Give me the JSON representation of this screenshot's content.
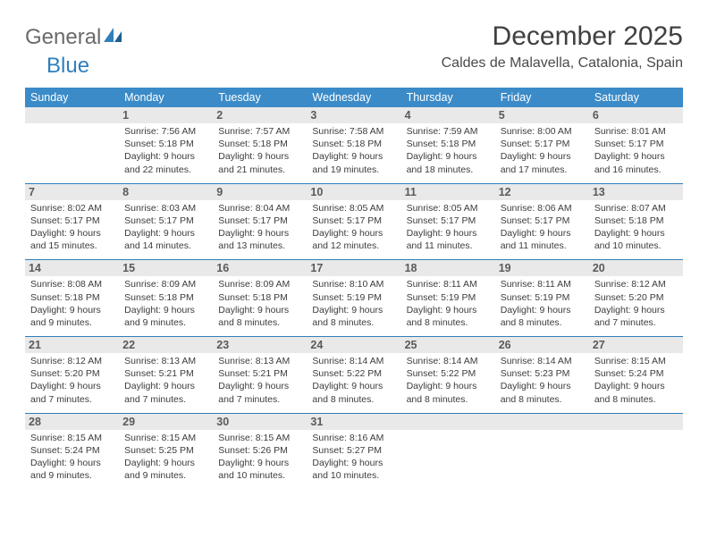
{
  "logo": {
    "general": "General",
    "blue": "Blue"
  },
  "title": "December 2025",
  "location": "Caldes de Malavella, Catalonia, Spain",
  "colors": {
    "header_bg": "#3b8bc8",
    "header_text": "#ffffff",
    "daynum_bg": "#e9e9e9",
    "rule": "#2f7fbc",
    "logo_gray": "#6a6a6a",
    "logo_blue": "#2f7fbc"
  },
  "typography": {
    "title_fontsize": 30,
    "location_fontsize": 16,
    "dayheader_fontsize": 12.5,
    "daynum_fontsize": 12.5,
    "body_fontsize": 10.5
  },
  "dayHeaders": [
    "Sunday",
    "Monday",
    "Tuesday",
    "Wednesday",
    "Thursday",
    "Friday",
    "Saturday"
  ],
  "weeks": [
    [
      null,
      {
        "n": "1",
        "sr": "Sunrise: 7:56 AM",
        "ss": "Sunset: 5:18 PM",
        "d1": "Daylight: 9 hours",
        "d2": "and 22 minutes."
      },
      {
        "n": "2",
        "sr": "Sunrise: 7:57 AM",
        "ss": "Sunset: 5:18 PM",
        "d1": "Daylight: 9 hours",
        "d2": "and 21 minutes."
      },
      {
        "n": "3",
        "sr": "Sunrise: 7:58 AM",
        "ss": "Sunset: 5:18 PM",
        "d1": "Daylight: 9 hours",
        "d2": "and 19 minutes."
      },
      {
        "n": "4",
        "sr": "Sunrise: 7:59 AM",
        "ss": "Sunset: 5:18 PM",
        "d1": "Daylight: 9 hours",
        "d2": "and 18 minutes."
      },
      {
        "n": "5",
        "sr": "Sunrise: 8:00 AM",
        "ss": "Sunset: 5:17 PM",
        "d1": "Daylight: 9 hours",
        "d2": "and 17 minutes."
      },
      {
        "n": "6",
        "sr": "Sunrise: 8:01 AM",
        "ss": "Sunset: 5:17 PM",
        "d1": "Daylight: 9 hours",
        "d2": "and 16 minutes."
      }
    ],
    [
      {
        "n": "7",
        "sr": "Sunrise: 8:02 AM",
        "ss": "Sunset: 5:17 PM",
        "d1": "Daylight: 9 hours",
        "d2": "and 15 minutes."
      },
      {
        "n": "8",
        "sr": "Sunrise: 8:03 AM",
        "ss": "Sunset: 5:17 PM",
        "d1": "Daylight: 9 hours",
        "d2": "and 14 minutes."
      },
      {
        "n": "9",
        "sr": "Sunrise: 8:04 AM",
        "ss": "Sunset: 5:17 PM",
        "d1": "Daylight: 9 hours",
        "d2": "and 13 minutes."
      },
      {
        "n": "10",
        "sr": "Sunrise: 8:05 AM",
        "ss": "Sunset: 5:17 PM",
        "d1": "Daylight: 9 hours",
        "d2": "and 12 minutes."
      },
      {
        "n": "11",
        "sr": "Sunrise: 8:05 AM",
        "ss": "Sunset: 5:17 PM",
        "d1": "Daylight: 9 hours",
        "d2": "and 11 minutes."
      },
      {
        "n": "12",
        "sr": "Sunrise: 8:06 AM",
        "ss": "Sunset: 5:17 PM",
        "d1": "Daylight: 9 hours",
        "d2": "and 11 minutes."
      },
      {
        "n": "13",
        "sr": "Sunrise: 8:07 AM",
        "ss": "Sunset: 5:18 PM",
        "d1": "Daylight: 9 hours",
        "d2": "and 10 minutes."
      }
    ],
    [
      {
        "n": "14",
        "sr": "Sunrise: 8:08 AM",
        "ss": "Sunset: 5:18 PM",
        "d1": "Daylight: 9 hours",
        "d2": "and 9 minutes."
      },
      {
        "n": "15",
        "sr": "Sunrise: 8:09 AM",
        "ss": "Sunset: 5:18 PM",
        "d1": "Daylight: 9 hours",
        "d2": "and 9 minutes."
      },
      {
        "n": "16",
        "sr": "Sunrise: 8:09 AM",
        "ss": "Sunset: 5:18 PM",
        "d1": "Daylight: 9 hours",
        "d2": "and 8 minutes."
      },
      {
        "n": "17",
        "sr": "Sunrise: 8:10 AM",
        "ss": "Sunset: 5:19 PM",
        "d1": "Daylight: 9 hours",
        "d2": "and 8 minutes."
      },
      {
        "n": "18",
        "sr": "Sunrise: 8:11 AM",
        "ss": "Sunset: 5:19 PM",
        "d1": "Daylight: 9 hours",
        "d2": "and 8 minutes."
      },
      {
        "n": "19",
        "sr": "Sunrise: 8:11 AM",
        "ss": "Sunset: 5:19 PM",
        "d1": "Daylight: 9 hours",
        "d2": "and 8 minutes."
      },
      {
        "n": "20",
        "sr": "Sunrise: 8:12 AM",
        "ss": "Sunset: 5:20 PM",
        "d1": "Daylight: 9 hours",
        "d2": "and 7 minutes."
      }
    ],
    [
      {
        "n": "21",
        "sr": "Sunrise: 8:12 AM",
        "ss": "Sunset: 5:20 PM",
        "d1": "Daylight: 9 hours",
        "d2": "and 7 minutes."
      },
      {
        "n": "22",
        "sr": "Sunrise: 8:13 AM",
        "ss": "Sunset: 5:21 PM",
        "d1": "Daylight: 9 hours",
        "d2": "and 7 minutes."
      },
      {
        "n": "23",
        "sr": "Sunrise: 8:13 AM",
        "ss": "Sunset: 5:21 PM",
        "d1": "Daylight: 9 hours",
        "d2": "and 7 minutes."
      },
      {
        "n": "24",
        "sr": "Sunrise: 8:14 AM",
        "ss": "Sunset: 5:22 PM",
        "d1": "Daylight: 9 hours",
        "d2": "and 8 minutes."
      },
      {
        "n": "25",
        "sr": "Sunrise: 8:14 AM",
        "ss": "Sunset: 5:22 PM",
        "d1": "Daylight: 9 hours",
        "d2": "and 8 minutes."
      },
      {
        "n": "26",
        "sr": "Sunrise: 8:14 AM",
        "ss": "Sunset: 5:23 PM",
        "d1": "Daylight: 9 hours",
        "d2": "and 8 minutes."
      },
      {
        "n": "27",
        "sr": "Sunrise: 8:15 AM",
        "ss": "Sunset: 5:24 PM",
        "d1": "Daylight: 9 hours",
        "d2": "and 8 minutes."
      }
    ],
    [
      {
        "n": "28",
        "sr": "Sunrise: 8:15 AM",
        "ss": "Sunset: 5:24 PM",
        "d1": "Daylight: 9 hours",
        "d2": "and 9 minutes."
      },
      {
        "n": "29",
        "sr": "Sunrise: 8:15 AM",
        "ss": "Sunset: 5:25 PM",
        "d1": "Daylight: 9 hours",
        "d2": "and 9 minutes."
      },
      {
        "n": "30",
        "sr": "Sunrise: 8:15 AM",
        "ss": "Sunset: 5:26 PM",
        "d1": "Daylight: 9 hours",
        "d2": "and 10 minutes."
      },
      {
        "n": "31",
        "sr": "Sunrise: 8:16 AM",
        "ss": "Sunset: 5:27 PM",
        "d1": "Daylight: 9 hours",
        "d2": "and 10 minutes."
      },
      null,
      null,
      null
    ]
  ]
}
